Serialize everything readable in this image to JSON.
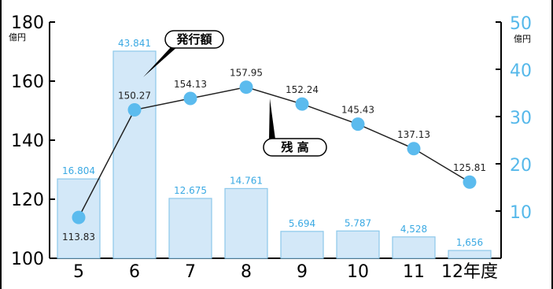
{
  "chart_data": {
    "type": "bar+line",
    "categories": [
      "5",
      "6",
      "7",
      "8",
      "9",
      "10",
      "11",
      "12年度"
    ],
    "series": [
      {
        "name": "発行額",
        "type": "bar",
        "axis": "right",
        "values": [
          16.804,
          43.841,
          12.675,
          14.761,
          5.694,
          5.787,
          4.528,
          1.656
        ],
        "labels": [
          "16.804",
          "43.841",
          "12.675",
          "14.761",
          "5.694",
          "5.787",
          "4,528",
          "1,656"
        ]
      },
      {
        "name": "残 高",
        "type": "line",
        "axis": "left",
        "values": [
          113.83,
          150.27,
          154.13,
          157.95,
          152.24,
          145.43,
          137.13,
          125.81
        ],
        "labels": [
          "113.83",
          "150.27",
          "154.13",
          "157.95",
          "152.24",
          "145.43",
          "137.13",
          "125.81"
        ]
      }
    ],
    "left_axis": {
      "unit": "億円",
      "ylim": [
        100,
        180
      ],
      "ticks": [
        "100",
        "120",
        "140",
        "160",
        "180"
      ]
    },
    "right_axis": {
      "unit": "億円",
      "ylim": [
        0,
        50
      ],
      "ticks": [
        "10",
        "20",
        "30",
        "40",
        "50"
      ]
    },
    "colors": {
      "bar_fill": "#d3e8f8",
      "bar_stroke": "#8cc8ea",
      "bar_label": "#3aa9e3",
      "right_axis": "#55b8ea",
      "line": "#222222",
      "marker": "#5bbbee"
    },
    "grid": false
  }
}
